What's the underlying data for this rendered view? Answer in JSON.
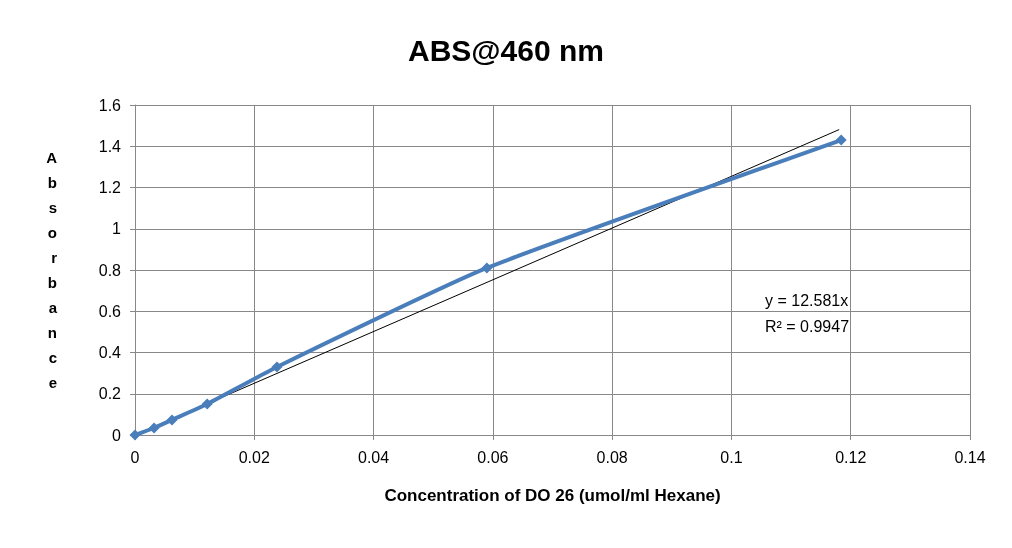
{
  "chart_data": {
    "type": "line",
    "title": "ABS@460 nm",
    "xlabel": "Concentration of DO 26 (umol/ml Hexane)",
    "ylabel": "Absorbance",
    "series": [
      {
        "color": "#4a7ebb",
        "marker": "diamond",
        "x": [
          0,
          0.0032,
          0.0062,
          0.0121,
          0.0238,
          0.059,
          0.1184
        ],
        "values": [
          0,
          0.034,
          0.073,
          0.15,
          0.33,
          0.81,
          1.43
        ]
      },
      {
        "type": "line",
        "color": "#000000",
        "marker": "none",
        "x": [
          0,
          0.118
        ],
        "values": [
          0,
          1.48
        ]
      }
    ],
    "annotations": [
      "y = 12.581x",
      "R² = 0.9947"
    ],
    "xlim": [
      0,
      0.14
    ],
    "xticks": [
      0,
      0.02,
      0.04,
      0.06,
      0.08,
      0.1,
      0.12,
      0.14
    ],
    "ylim": [
      0,
      1.6
    ],
    "yticks": [
      0,
      0.2,
      0.4,
      0.6,
      0.8,
      1,
      1.2,
      1.4,
      1.6
    ],
    "grid": true
  }
}
